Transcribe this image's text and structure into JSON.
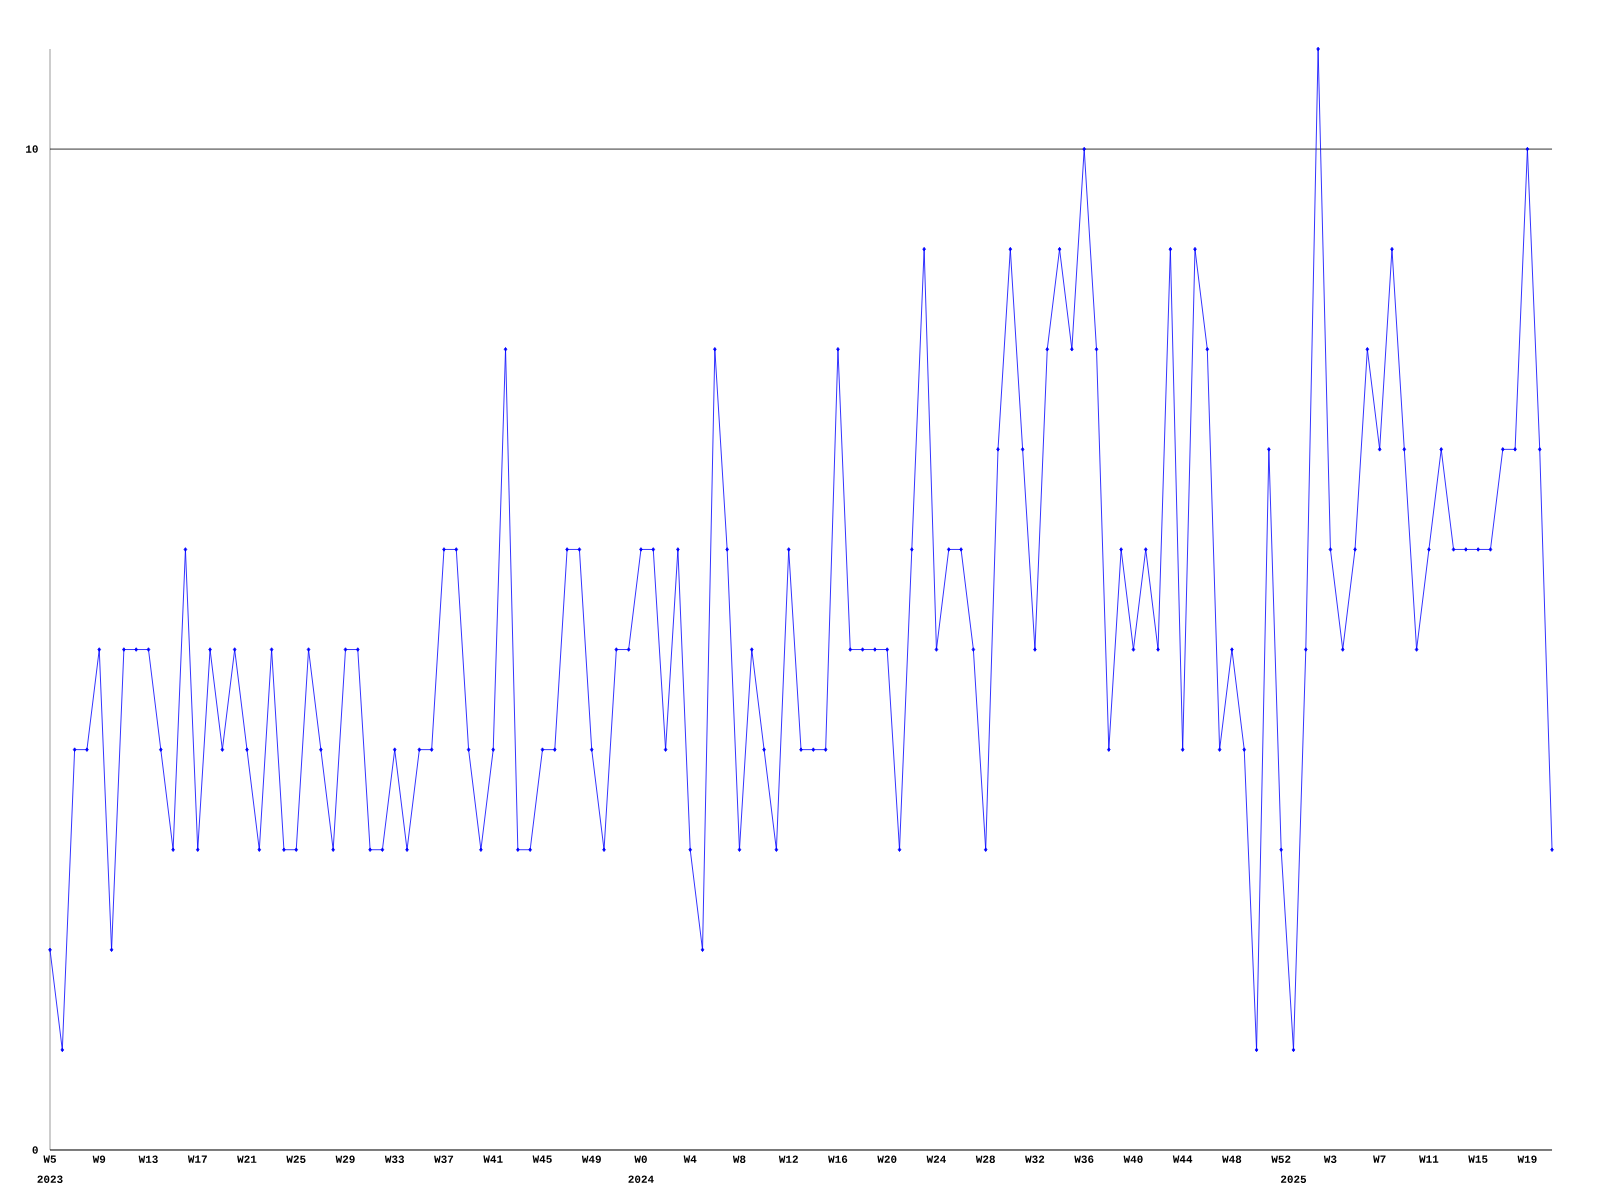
{
  "chart_data": {
    "type": "line",
    "categories": [
      "W5",
      null,
      null,
      null,
      "W9",
      null,
      null,
      null,
      "W13",
      null,
      null,
      null,
      "W17",
      null,
      null,
      null,
      "W21",
      null,
      null,
      null,
      "W25",
      null,
      null,
      null,
      "W29",
      null,
      null,
      null,
      "W33",
      null,
      null,
      null,
      "W37",
      null,
      null,
      null,
      "W41",
      null,
      null,
      null,
      "W45",
      null,
      null,
      null,
      "W49",
      null,
      null,
      null,
      "W0",
      null,
      null,
      null,
      "W4",
      null,
      null,
      null,
      "W8",
      null,
      null,
      null,
      "W12",
      null,
      null,
      null,
      "W16",
      null,
      null,
      null,
      "W20",
      null,
      null,
      null,
      "W24",
      null,
      null,
      null,
      "W28",
      null,
      null,
      null,
      "W32",
      null,
      null,
      null,
      "W36",
      null,
      null,
      null,
      "W40",
      null,
      null,
      null,
      "W44",
      null,
      null,
      null,
      "W48",
      null,
      null,
      null,
      "W52",
      null,
      null,
      null,
      "W3",
      null,
      null,
      null,
      "W7",
      null,
      null,
      null,
      "W11",
      null,
      null,
      null,
      "W15",
      null,
      null,
      null,
      "W19",
      null,
      null
    ],
    "series": [
      {
        "color": "#0000ff",
        "values": [
          2,
          1,
          4,
          4,
          5,
          2,
          5,
          5,
          5,
          4,
          3,
          6,
          3,
          5,
          4,
          5,
          4,
          3,
          5,
          3,
          3,
          5,
          4,
          3,
          5,
          5,
          3,
          3,
          4,
          3,
          4,
          4,
          6,
          6,
          4,
          3,
          4,
          8,
          3,
          3,
          4,
          4,
          6,
          6,
          4,
          3,
          5,
          5,
          6,
          6,
          4,
          6,
          3,
          2,
          8,
          6,
          3,
          5,
          4,
          3,
          6,
          4,
          4,
          4,
          8,
          5,
          5,
          5,
          5,
          3,
          6,
          9,
          5,
          6,
          6,
          5,
          3,
          7,
          9,
          7,
          5,
          8,
          9,
          8,
          10,
          8,
          4,
          6,
          5,
          6,
          5,
          9,
          4,
          9,
          8,
          4,
          5,
          4,
          1,
          7,
          3,
          1,
          5,
          11,
          6,
          5,
          6,
          8,
          7,
          9,
          7,
          5,
          6,
          7,
          6,
          6,
          6,
          6,
          7,
          7,
          10,
          7,
          3
        ]
      }
    ],
    "annotations": [
      "2023",
      "2024",
      "2025"
    ],
    "ylim": [
      0,
      11
    ],
    "yticks": [
      0,
      10
    ],
    "grid": "y",
    "marker": "diamond",
    "line_style": "solid"
  }
}
